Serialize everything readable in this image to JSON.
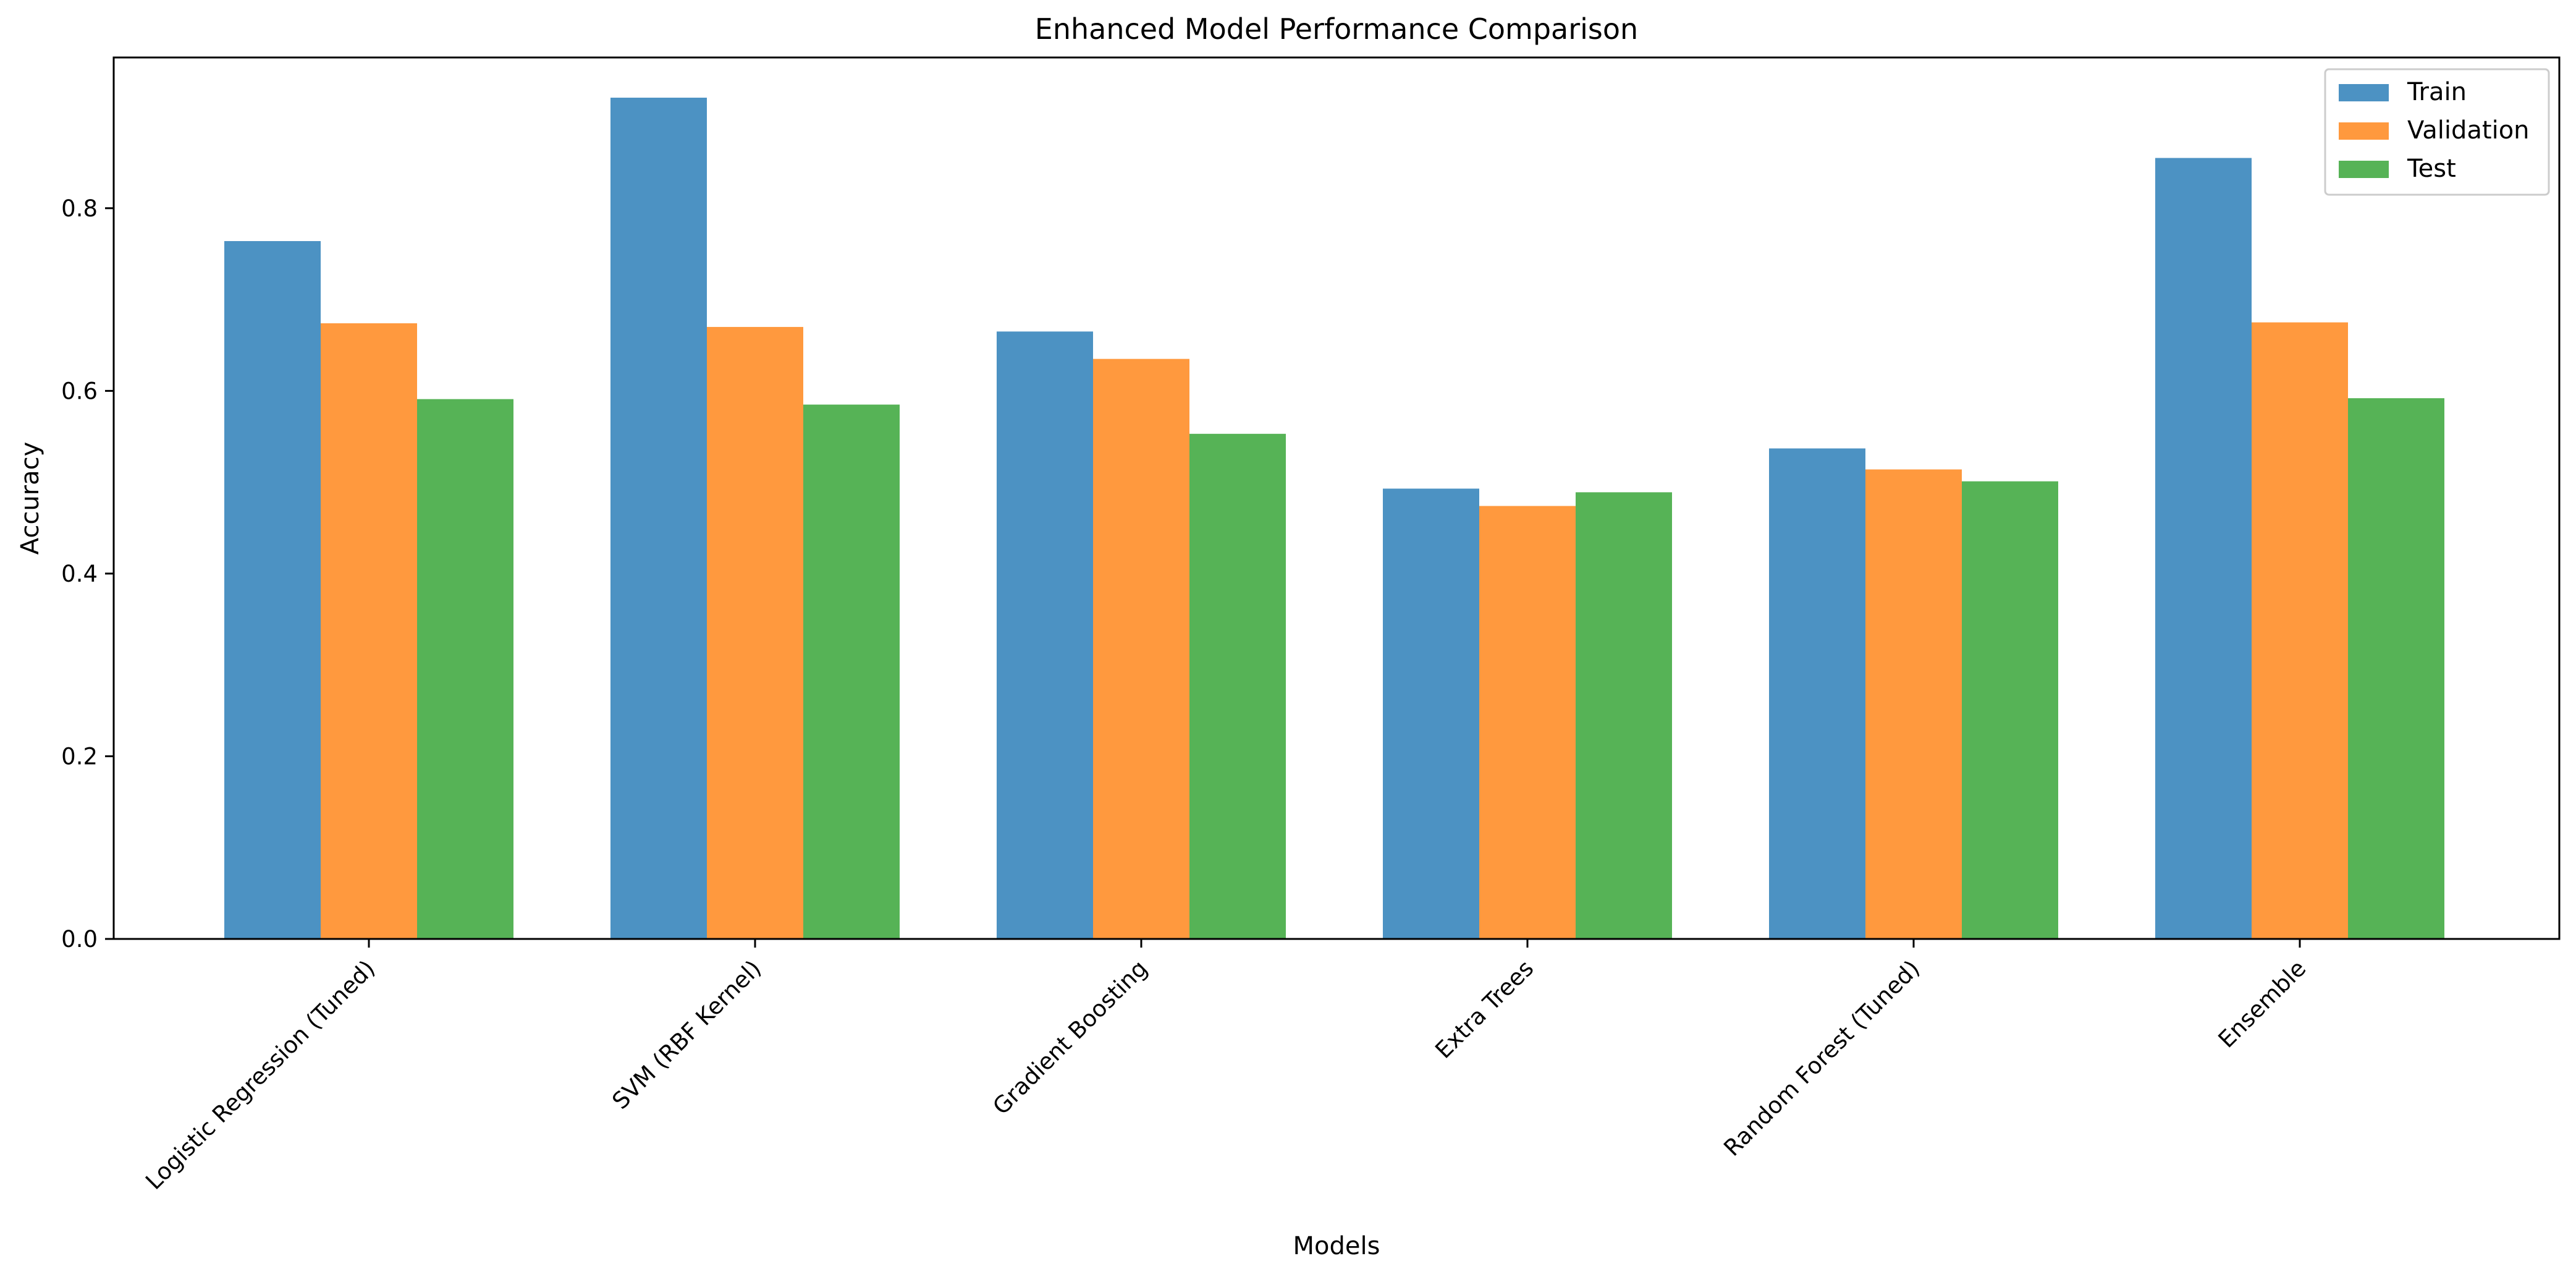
{
  "chart_data": {
    "type": "bar",
    "title": "Enhanced Model Performance Comparison",
    "xlabel": "Models",
    "ylabel": "Accuracy",
    "ylim": [
      0,
      0.965
    ],
    "yticks": [
      "0.0",
      "0.2",
      "0.4",
      "0.6",
      "0.8"
    ],
    "grid": false,
    "legend_position": "top-right",
    "categories": [
      "Logistic Regression (Tuned)",
      "SVM (RBF Kernel)",
      "Gradient Boosting",
      "Extra Trees",
      "Random Forest (Tuned)",
      "Ensemble"
    ],
    "series": [
      {
        "name": "Train",
        "color": "#1f77b4",
        "values": [
          0.764,
          0.921,
          0.665,
          0.493,
          0.537,
          0.855
        ]
      },
      {
        "name": "Validation",
        "color": "#ff7f0e",
        "values": [
          0.674,
          0.67,
          0.635,
          0.474,
          0.514,
          0.675
        ]
      },
      {
        "name": "Test",
        "color": "#2ca02c",
        "values": [
          0.591,
          0.585,
          0.553,
          0.489,
          0.501,
          0.592
        ]
      }
    ]
  }
}
